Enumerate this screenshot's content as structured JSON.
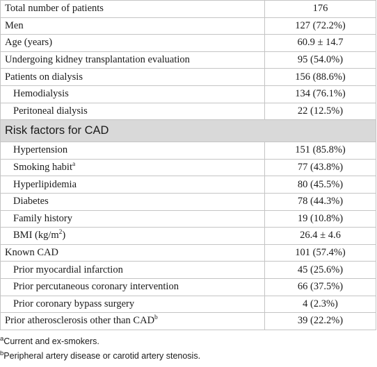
{
  "table": {
    "rows": [
      {
        "label": "Total number of patients",
        "value": "176",
        "indent": false
      },
      {
        "label": "Men",
        "value": "127 (72.2%)",
        "indent": false
      },
      {
        "label": "Age (years)",
        "value": "60.9 ± 14.7",
        "indent": false
      },
      {
        "label": "Undergoing kidney transplantation evaluation",
        "value": "95 (54.0%)",
        "indent": false
      },
      {
        "label": "Patients on dialysis",
        "value": "156 (88.6%)",
        "indent": false
      },
      {
        "label": "Hemodialysis",
        "value": "134 (76.1%)",
        "indent": true
      },
      {
        "label": "Peritoneal dialysis",
        "value": "22 (12.5%)",
        "indent": true
      },
      {
        "header": "Risk factors for CAD"
      },
      {
        "label": "Hypertension",
        "value": "151 (85.8%)",
        "indent": true
      },
      {
        "label": "Smoking habit",
        "sup": "a",
        "value": "77 (43.8%)",
        "indent": true
      },
      {
        "label": "Hyperlipidemia",
        "value": "80 (45.5%)",
        "indent": true
      },
      {
        "label": "Diabetes",
        "value": "78 (44.3%)",
        "indent": true
      },
      {
        "label": "Family history",
        "value": "19 (10.8%)",
        "indent": true
      },
      {
        "label": "BMI (kg/m",
        "sup": "2",
        "label_after": ")",
        "value": "26.4 ± 4.6",
        "indent": true
      },
      {
        "label": "Known CAD",
        "value": "101 (57.4%)",
        "indent": false
      },
      {
        "label": "Prior myocardial infarction",
        "value": "45 (25.6%)",
        "indent": true
      },
      {
        "label": "Prior percutaneous coronary intervention",
        "value": "66 (37.5%)",
        "indent": true
      },
      {
        "label": "Prior coronary bypass surgery",
        "value": "4 (2.3%)",
        "indent": true
      },
      {
        "label": "Prior atherosclerosis other than CAD",
        "sup": "b",
        "value": "39 (22.2%)",
        "indent": false
      }
    ]
  },
  "footnotes": [
    {
      "mark": "a",
      "text": "Current and ex-smokers."
    },
    {
      "mark": "b",
      "text": "Peripheral artery disease or carotid artery stenosis."
    }
  ]
}
